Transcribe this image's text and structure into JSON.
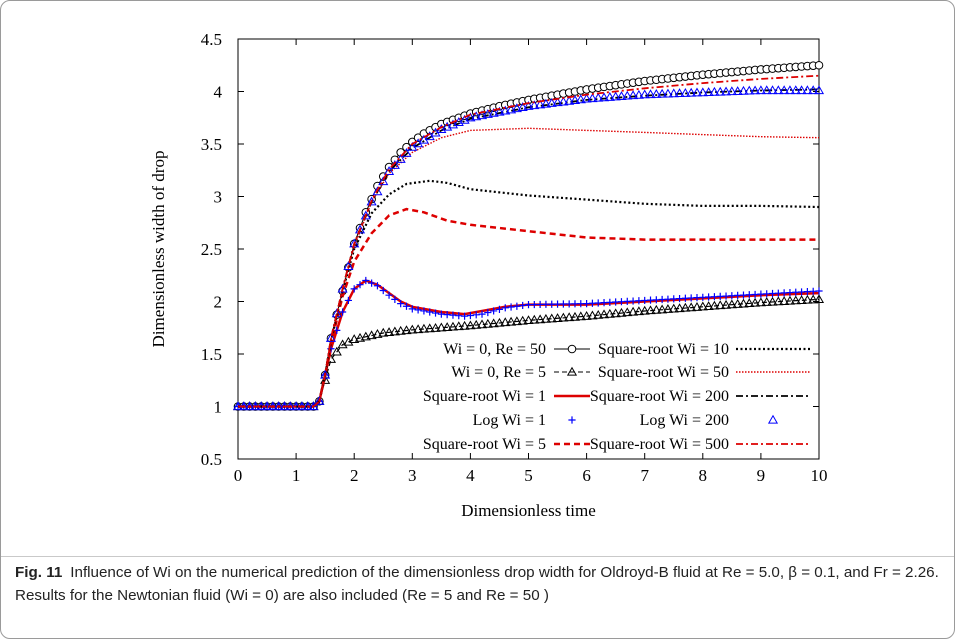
{
  "chart_data": {
    "type": "line",
    "xlabel": "Dimensionless time",
    "ylabel": "Dimensionless width of drop",
    "xlim": [
      0,
      10
    ],
    "ylim": [
      0.5,
      4.5
    ],
    "xticks": [
      "0",
      "1",
      "2",
      "3",
      "4",
      "5",
      "6",
      "7",
      "8",
      "9",
      "10"
    ],
    "yticks": [
      "0.5",
      "1",
      "1.5",
      "2",
      "2.5",
      "3",
      "3.5",
      "4",
      "4.5"
    ],
    "grid": false,
    "legend_position": "bottom-right",
    "legend_left": [
      "Wi = 0, Re = 50",
      "Wi = 0, Re = 5",
      "Square-root Wi = 1",
      "Log Wi = 1",
      "Square-root Wi = 5"
    ],
    "legend_right": [
      "Square-root Wi = 10",
      "Square-root Wi = 50",
      "Square-root Wi = 200",
      "Log Wi = 200",
      "Square-root Wi = 500"
    ],
    "series": [
      {
        "name": "Wi = 0, Re = 50",
        "color": "#000000",
        "style": "circle-markers",
        "points": [
          [
            0,
            1
          ],
          [
            1.3,
            1
          ],
          [
            1.4,
            1.05
          ],
          [
            1.5,
            1.3
          ],
          [
            1.6,
            1.65
          ],
          [
            1.8,
            2.1
          ],
          [
            2,
            2.55
          ],
          [
            2.2,
            2.85
          ],
          [
            2.4,
            3.1
          ],
          [
            2.6,
            3.28
          ],
          [
            2.8,
            3.42
          ],
          [
            3,
            3.52
          ],
          [
            3.2,
            3.6
          ],
          [
            3.5,
            3.69
          ],
          [
            4,
            3.79
          ],
          [
            4.5,
            3.86
          ],
          [
            5,
            3.92
          ],
          [
            6,
            4.02
          ],
          [
            7,
            4.1
          ],
          [
            8,
            4.16
          ],
          [
            9,
            4.21
          ],
          [
            10,
            4.25
          ]
        ]
      },
      {
        "name": "Wi = 0, Re = 5",
        "color": "#000000",
        "style": "triangle-markers",
        "points": [
          [
            0,
            1
          ],
          [
            1.3,
            1
          ],
          [
            1.4,
            1.05
          ],
          [
            1.5,
            1.25
          ],
          [
            1.6,
            1.45
          ],
          [
            1.8,
            1.59
          ],
          [
            2,
            1.64
          ],
          [
            2.5,
            1.7
          ],
          [
            3,
            1.73
          ],
          [
            4,
            1.77
          ],
          [
            5,
            1.82
          ],
          [
            6,
            1.86
          ],
          [
            7,
            1.91
          ],
          [
            8,
            1.95
          ],
          [
            9,
            1.99
          ],
          [
            10,
            2.02
          ]
        ]
      },
      {
        "name": "Square-root Wi = 1",
        "color": "#dd0000",
        "style": "solid",
        "points": [
          [
            0,
            1
          ],
          [
            1.3,
            1
          ],
          [
            1.4,
            1.05
          ],
          [
            1.5,
            1.3
          ],
          [
            1.6,
            1.55
          ],
          [
            1.8,
            1.9
          ],
          [
            2,
            2.12
          ],
          [
            2.2,
            2.2
          ],
          [
            2.4,
            2.16
          ],
          [
            2.6,
            2.08
          ],
          [
            2.8,
            2
          ],
          [
            3,
            1.95
          ],
          [
            3.5,
            1.9
          ],
          [
            3.9,
            1.88
          ],
          [
            4.2,
            1.91
          ],
          [
            4.6,
            1.95
          ],
          [
            5,
            1.97
          ],
          [
            6,
            1.97
          ],
          [
            7,
            2
          ],
          [
            8,
            2.03
          ],
          [
            9,
            2.06
          ],
          [
            10,
            2.08
          ]
        ]
      },
      {
        "name": "Log Wi = 1",
        "color": "#0000ff",
        "style": "plus-markers",
        "points": [
          [
            0,
            1
          ],
          [
            1.3,
            1
          ],
          [
            1.4,
            1.05
          ],
          [
            1.5,
            1.3
          ],
          [
            1.6,
            1.55
          ],
          [
            1.8,
            1.9
          ],
          [
            2,
            2.12
          ],
          [
            2.2,
            2.2
          ],
          [
            2.4,
            2.15
          ],
          [
            2.6,
            2.06
          ],
          [
            2.8,
            1.98
          ],
          [
            3,
            1.93
          ],
          [
            3.5,
            1.88
          ],
          [
            3.9,
            1.86
          ],
          [
            4.2,
            1.88
          ],
          [
            4.6,
            1.94
          ],
          [
            5,
            1.97
          ],
          [
            6,
            1.98
          ],
          [
            7,
            2.01
          ],
          [
            8,
            2.04
          ],
          [
            9,
            2.07
          ],
          [
            10,
            2.1
          ]
        ]
      },
      {
        "name": "Square-root Wi = 5",
        "color": "#dd0000",
        "style": "dashed",
        "points": [
          [
            0,
            1
          ],
          [
            1.3,
            1
          ],
          [
            1.4,
            1.05
          ],
          [
            1.5,
            1.3
          ],
          [
            1.6,
            1.6
          ],
          [
            1.8,
            2.05
          ],
          [
            2,
            2.38
          ],
          [
            2.3,
            2.65
          ],
          [
            2.6,
            2.82
          ],
          [
            2.9,
            2.88
          ],
          [
            3.2,
            2.85
          ],
          [
            3.6,
            2.77
          ],
          [
            4,
            2.73
          ],
          [
            5,
            2.67
          ],
          [
            6,
            2.61
          ],
          [
            7,
            2.59
          ],
          [
            8,
            2.59
          ],
          [
            9,
            2.59
          ],
          [
            10,
            2.59
          ]
        ]
      },
      {
        "name": "Square-root Wi = 10",
        "color": "#000000",
        "style": "dotted",
        "points": [
          [
            0,
            1
          ],
          [
            1.3,
            1
          ],
          [
            1.4,
            1.05
          ],
          [
            1.5,
            1.3
          ],
          [
            1.6,
            1.62
          ],
          [
            1.8,
            2.1
          ],
          [
            2,
            2.5
          ],
          [
            2.3,
            2.84
          ],
          [
            2.6,
            3.02
          ],
          [
            2.9,
            3.12
          ],
          [
            3.3,
            3.15
          ],
          [
            3.6,
            3.13
          ],
          [
            4,
            3.07
          ],
          [
            5,
            3.01
          ],
          [
            6,
            2.97
          ],
          [
            7,
            2.93
          ],
          [
            8,
            2.91
          ],
          [
            9,
            2.91
          ],
          [
            10,
            2.9
          ]
        ]
      },
      {
        "name": "Square-root Wi = 50",
        "color": "#dd0000",
        "style": "dense-dotted",
        "points": [
          [
            0,
            1
          ],
          [
            1.3,
            1
          ],
          [
            1.4,
            1.05
          ],
          [
            1.5,
            1.3
          ],
          [
            1.6,
            1.64
          ],
          [
            1.8,
            2.12
          ],
          [
            2,
            2.52
          ],
          [
            2.3,
            2.95
          ],
          [
            2.6,
            3.22
          ],
          [
            3,
            3.42
          ],
          [
            3.5,
            3.56
          ],
          [
            4,
            3.63
          ],
          [
            5,
            3.65
          ],
          [
            6,
            3.63
          ],
          [
            7,
            3.61
          ],
          [
            8,
            3.59
          ],
          [
            9,
            3.57
          ],
          [
            10,
            3.56
          ]
        ]
      },
      {
        "name": "Square-root Wi = 200",
        "color": "#000000",
        "style": "dash-dot",
        "points": [
          [
            0,
            1
          ],
          [
            1.3,
            1
          ],
          [
            1.4,
            1.05
          ],
          [
            1.5,
            1.3
          ],
          [
            1.6,
            1.65
          ],
          [
            1.8,
            2.12
          ],
          [
            2,
            2.55
          ],
          [
            2.3,
            2.95
          ],
          [
            2.6,
            3.24
          ],
          [
            3,
            3.46
          ],
          [
            3.5,
            3.63
          ],
          [
            4,
            3.74
          ],
          [
            5,
            3.85
          ],
          [
            6,
            3.92
          ],
          [
            7,
            3.96
          ],
          [
            8,
            3.99
          ],
          [
            9,
            4.01
          ],
          [
            10,
            4.02
          ]
        ]
      },
      {
        "name": "Log Wi = 200",
        "color": "#0000ff",
        "style": "triangle-markers",
        "points": [
          [
            0,
            1
          ],
          [
            1.3,
            1
          ],
          [
            1.4,
            1.05
          ],
          [
            1.5,
            1.3
          ],
          [
            1.6,
            1.65
          ],
          [
            1.8,
            2.12
          ],
          [
            2,
            2.55
          ],
          [
            2.3,
            2.95
          ],
          [
            2.6,
            3.24
          ],
          [
            3,
            3.47
          ],
          [
            3.5,
            3.64
          ],
          [
            4,
            3.75
          ],
          [
            5,
            3.86
          ],
          [
            6,
            3.93
          ],
          [
            7,
            3.97
          ],
          [
            8,
            3.99
          ],
          [
            9,
            4.01
          ],
          [
            10,
            4.01
          ]
        ]
      },
      {
        "name": "Square-root Wi = 500",
        "color": "#dd0000",
        "style": "dash-dot",
        "points": [
          [
            0,
            1
          ],
          [
            1.3,
            1
          ],
          [
            1.4,
            1.05
          ],
          [
            1.5,
            1.3
          ],
          [
            1.6,
            1.65
          ],
          [
            1.8,
            2.12
          ],
          [
            2,
            2.55
          ],
          [
            2.3,
            2.96
          ],
          [
            2.6,
            3.26
          ],
          [
            3,
            3.5
          ],
          [
            3.5,
            3.66
          ],
          [
            4,
            3.78
          ],
          [
            5,
            3.89
          ],
          [
            6,
            3.97
          ],
          [
            7,
            4.03
          ],
          [
            8,
            4.08
          ],
          [
            9,
            4.12
          ],
          [
            10,
            4.15
          ]
        ]
      }
    ]
  },
  "caption": {
    "label": "Fig. 11",
    "text": "Influence of Wi on the numerical prediction of the dimensionless drop width for Oldroyd-B fluid at Re = 5.0, β = 0.1, and Fr = 2.26. Results for the Newtonian fluid (Wi = 0) are also included (Re = 5 and Re = 50 )"
  }
}
